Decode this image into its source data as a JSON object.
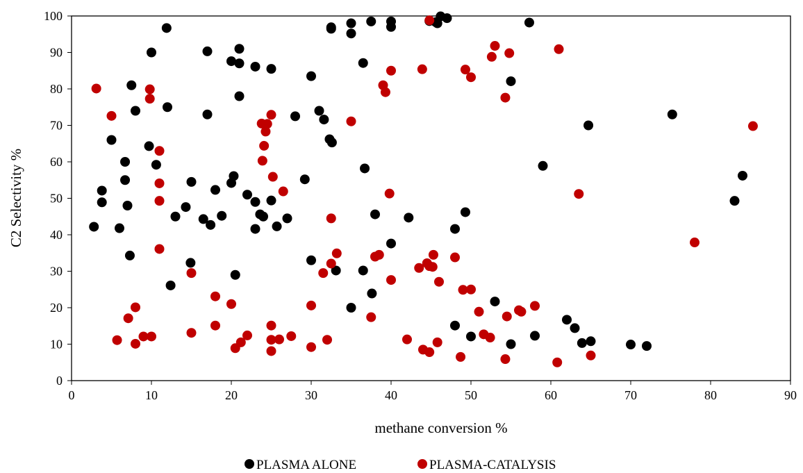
{
  "chart_data": {
    "type": "scatter",
    "xlabel": "methane conversion %",
    "ylabel": "C2 Selectivity %",
    "xlim": [
      0,
      90
    ],
    "ylim": [
      0,
      100
    ],
    "xticks": [
      0,
      10,
      20,
      30,
      40,
      50,
      60,
      70,
      80,
      90
    ],
    "yticks": [
      0,
      10,
      20,
      30,
      40,
      50,
      60,
      70,
      80,
      90,
      100
    ],
    "grid": false,
    "legend_position": "bottom",
    "series": [
      {
        "name": "PLASMA ALONE",
        "color": "#000000",
        "points": [
          [
            2.8,
            42.2
          ],
          [
            3.8,
            52.1
          ],
          [
            3.8,
            48.9
          ],
          [
            5.0,
            66.0
          ],
          [
            6.0,
            41.8
          ],
          [
            6.7,
            60.0
          ],
          [
            6.7,
            55.0
          ],
          [
            7.0,
            48.0
          ],
          [
            7.3,
            34.3
          ],
          [
            7.5,
            81.0
          ],
          [
            8.0,
            74.0
          ],
          [
            9.7,
            64.3
          ],
          [
            10.0,
            90.0
          ],
          [
            10.6,
            59.2
          ],
          [
            11.9,
            96.7
          ],
          [
            12.0,
            75.0
          ],
          [
            12.4,
            26.1
          ],
          [
            13.0,
            45.0
          ],
          [
            14.3,
            47.6
          ],
          [
            14.9,
            32.3
          ],
          [
            15.0,
            54.5
          ],
          [
            16.5,
            44.3
          ],
          [
            17.0,
            90.3
          ],
          [
            17.0,
            73.0
          ],
          [
            17.4,
            42.7
          ],
          [
            18.0,
            52.3
          ],
          [
            18.8,
            45.2
          ],
          [
            20.0,
            87.6
          ],
          [
            20.0,
            54.2
          ],
          [
            20.3,
            56.1
          ],
          [
            20.5,
            29.0
          ],
          [
            21.0,
            91.0
          ],
          [
            21.0,
            87.0
          ],
          [
            21.0,
            78.0
          ],
          [
            22.0,
            51.0
          ],
          [
            23.0,
            86.1
          ],
          [
            23.0,
            49.0
          ],
          [
            23.0,
            41.6
          ],
          [
            23.6,
            45.6
          ],
          [
            24.0,
            45.0
          ],
          [
            25.0,
            85.5
          ],
          [
            25.0,
            49.4
          ],
          [
            25.7,
            42.3
          ],
          [
            27.0,
            44.5
          ],
          [
            28.0,
            72.5
          ],
          [
            29.2,
            55.2
          ],
          [
            30.0,
            83.5
          ],
          [
            30.0,
            33.0
          ],
          [
            31.0,
            74.0
          ],
          [
            31.6,
            71.6
          ],
          [
            32.3,
            66.2
          ],
          [
            32.5,
            96.9
          ],
          [
            32.5,
            96.5
          ],
          [
            32.6,
            65.3
          ],
          [
            33.1,
            30.2
          ],
          [
            35.0,
            98.0
          ],
          [
            35.0,
            95.2
          ],
          [
            35.0,
            20.0
          ],
          [
            36.5,
            87.1
          ],
          [
            36.5,
            30.2
          ],
          [
            36.7,
            58.2
          ],
          [
            37.5,
            98.5
          ],
          [
            37.6,
            23.9
          ],
          [
            38.0,
            45.6
          ],
          [
            40.0,
            98.5
          ],
          [
            40.0,
            97.0
          ],
          [
            40.0,
            37.6
          ],
          [
            42.2,
            44.7
          ],
          [
            44.8,
            98.6
          ],
          [
            45.6,
            98.3
          ],
          [
            45.8,
            98.0
          ],
          [
            46.2,
            99.9
          ],
          [
            47.0,
            99.4
          ],
          [
            48.0,
            41.6
          ],
          [
            48.0,
            15.1
          ],
          [
            49.3,
            46.2
          ],
          [
            50.0,
            12.1
          ],
          [
            53.0,
            21.7
          ],
          [
            55.0,
            82.1
          ],
          [
            55.0,
            10.0
          ],
          [
            57.3,
            98.2
          ],
          [
            58.0,
            12.3
          ],
          [
            59.0,
            58.9
          ],
          [
            62.0,
            16.7
          ],
          [
            63.0,
            14.4
          ],
          [
            63.9,
            10.3
          ],
          [
            64.7,
            70.0
          ],
          [
            65.0,
            10.8
          ],
          [
            70.0,
            9.9
          ],
          [
            72.0,
            9.5
          ],
          [
            75.2,
            73.0
          ],
          [
            83.0,
            49.3
          ],
          [
            84.0,
            56.2
          ]
        ]
      },
      {
        "name": "PLASMA-CATALYSIS",
        "color": "#c00000",
        "points": [
          [
            3.1,
            80.1
          ],
          [
            5.0,
            72.6
          ],
          [
            5.7,
            11.1
          ],
          [
            7.1,
            17.1
          ],
          [
            8.0,
            20.1
          ],
          [
            8.0,
            10.1
          ],
          [
            9.0,
            12.1
          ],
          [
            9.8,
            77.3
          ],
          [
            9.8,
            79.9
          ],
          [
            10.0,
            12.1
          ],
          [
            11.0,
            63.0
          ],
          [
            11.0,
            54.1
          ],
          [
            11.0,
            49.3
          ],
          [
            11.0,
            36.1
          ],
          [
            15.0,
            29.5
          ],
          [
            15.0,
            13.1
          ],
          [
            18.0,
            23.1
          ],
          [
            18.0,
            15.1
          ],
          [
            20.0,
            21.0
          ],
          [
            20.5,
            8.9
          ],
          [
            21.2,
            10.5
          ],
          [
            22.0,
            12.4
          ],
          [
            23.8,
            70.5
          ],
          [
            23.9,
            60.3
          ],
          [
            24.1,
            64.4
          ],
          [
            24.3,
            68.3
          ],
          [
            24.5,
            70.4
          ],
          [
            25.0,
            72.9
          ],
          [
            25.0,
            15.1
          ],
          [
            25.0,
            11.2
          ],
          [
            25.0,
            8.1
          ],
          [
            25.2,
            55.9
          ],
          [
            26.0,
            11.3
          ],
          [
            26.5,
            51.9
          ],
          [
            27.5,
            12.2
          ],
          [
            30.0,
            20.6
          ],
          [
            30.0,
            9.2
          ],
          [
            31.5,
            29.5
          ],
          [
            32.0,
            11.2
          ],
          [
            32.5,
            44.5
          ],
          [
            32.5,
            32.1
          ],
          [
            33.2,
            34.9
          ],
          [
            35.0,
            71.1
          ],
          [
            37.5,
            17.4
          ],
          [
            38.0,
            34.0
          ],
          [
            38.5,
            34.5
          ],
          [
            39.0,
            81.0
          ],
          [
            39.3,
            79.1
          ],
          [
            39.8,
            51.3
          ],
          [
            40.0,
            85.0
          ],
          [
            40.0,
            27.6
          ],
          [
            42.0,
            11.3
          ],
          [
            43.5,
            30.9
          ],
          [
            43.9,
            85.4
          ],
          [
            44.0,
            8.5
          ],
          [
            44.5,
            32.2
          ],
          [
            44.8,
            31.4
          ],
          [
            44.8,
            98.8
          ],
          [
            44.8,
            7.8
          ],
          [
            45.2,
            31.2
          ],
          [
            45.3,
            34.5
          ],
          [
            45.8,
            10.5
          ],
          [
            46.0,
            27.1
          ],
          [
            48.0,
            33.8
          ],
          [
            48.7,
            6.5
          ],
          [
            49.0,
            24.9
          ],
          [
            49.3,
            85.3
          ],
          [
            50.0,
            83.2
          ],
          [
            50.0,
            25.0
          ],
          [
            51.0,
            18.9
          ],
          [
            51.6,
            12.7
          ],
          [
            52.4,
            11.8
          ],
          [
            52.6,
            88.8
          ],
          [
            53.0,
            91.8
          ],
          [
            54.3,
            77.6
          ],
          [
            54.3,
            5.9
          ],
          [
            54.5,
            17.6
          ],
          [
            54.8,
            89.8
          ],
          [
            56.0,
            19.3
          ],
          [
            56.3,
            18.9
          ],
          [
            58.0,
            20.5
          ],
          [
            60.8,
            5.0
          ],
          [
            61.0,
            90.9
          ],
          [
            63.5,
            51.2
          ],
          [
            65.0,
            6.9
          ],
          [
            78.0,
            37.9
          ],
          [
            85.3,
            69.8
          ]
        ]
      }
    ]
  }
}
